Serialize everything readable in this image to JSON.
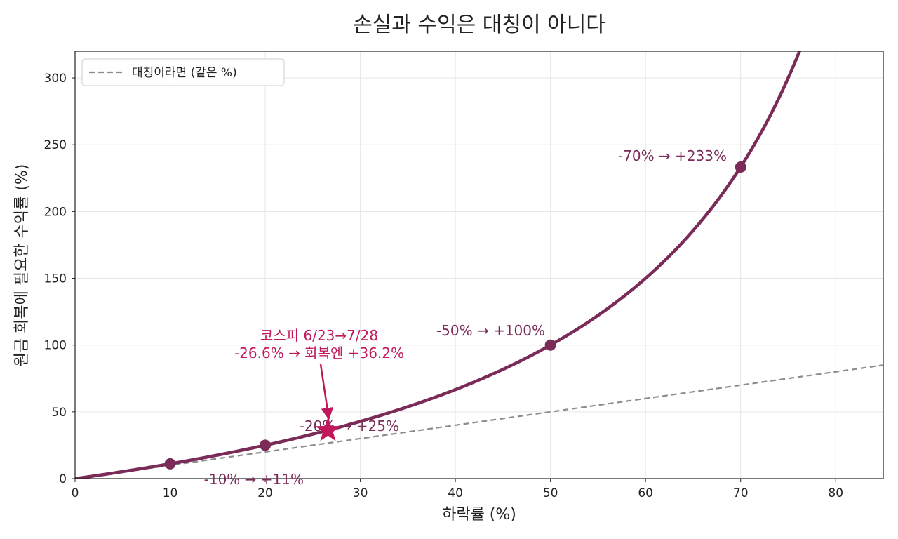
{
  "chart_data": {
    "type": "line",
    "title": "손실과 수익은 대칭이 아니다",
    "xlabel": "하락률 (%)",
    "ylabel": "원금 회복에 필요한 수익률 (%)",
    "xlim": [
      0,
      85
    ],
    "ylim": [
      0,
      320
    ],
    "x_ticks": [
      0,
      10,
      20,
      30,
      40,
      50,
      60,
      70,
      80
    ],
    "y_ticks": [
      0,
      50,
      100,
      150,
      200,
      250,
      300
    ],
    "grid": true,
    "legend_position": "top-left",
    "series": [
      {
        "key": "recovery",
        "formula": "y = 100*x/(100-x)",
        "color": "#7a2b58"
      },
      {
        "key": "symmetric",
        "name": "대칭이라면 (같은 %)",
        "formula": "y = x",
        "style": "dashed",
        "color": "#8c8c8c"
      }
    ],
    "points": [
      {
        "x": 10,
        "y": 11.1,
        "label": "-10% → +11%"
      },
      {
        "x": 20,
        "y": 25,
        "label": "-20% → +25%"
      },
      {
        "x": 50,
        "y": 100,
        "label": "-50% → +100%"
      },
      {
        "x": 70,
        "y": 233.3,
        "label": "-70% → +233%"
      }
    ],
    "highlight": {
      "x": 26.6,
      "y": 36.2,
      "label_line1": "코스피 6/23→7/28",
      "label_line2": "-26.6% → 회복엔 +36.2%",
      "color": "#c2185b"
    }
  }
}
